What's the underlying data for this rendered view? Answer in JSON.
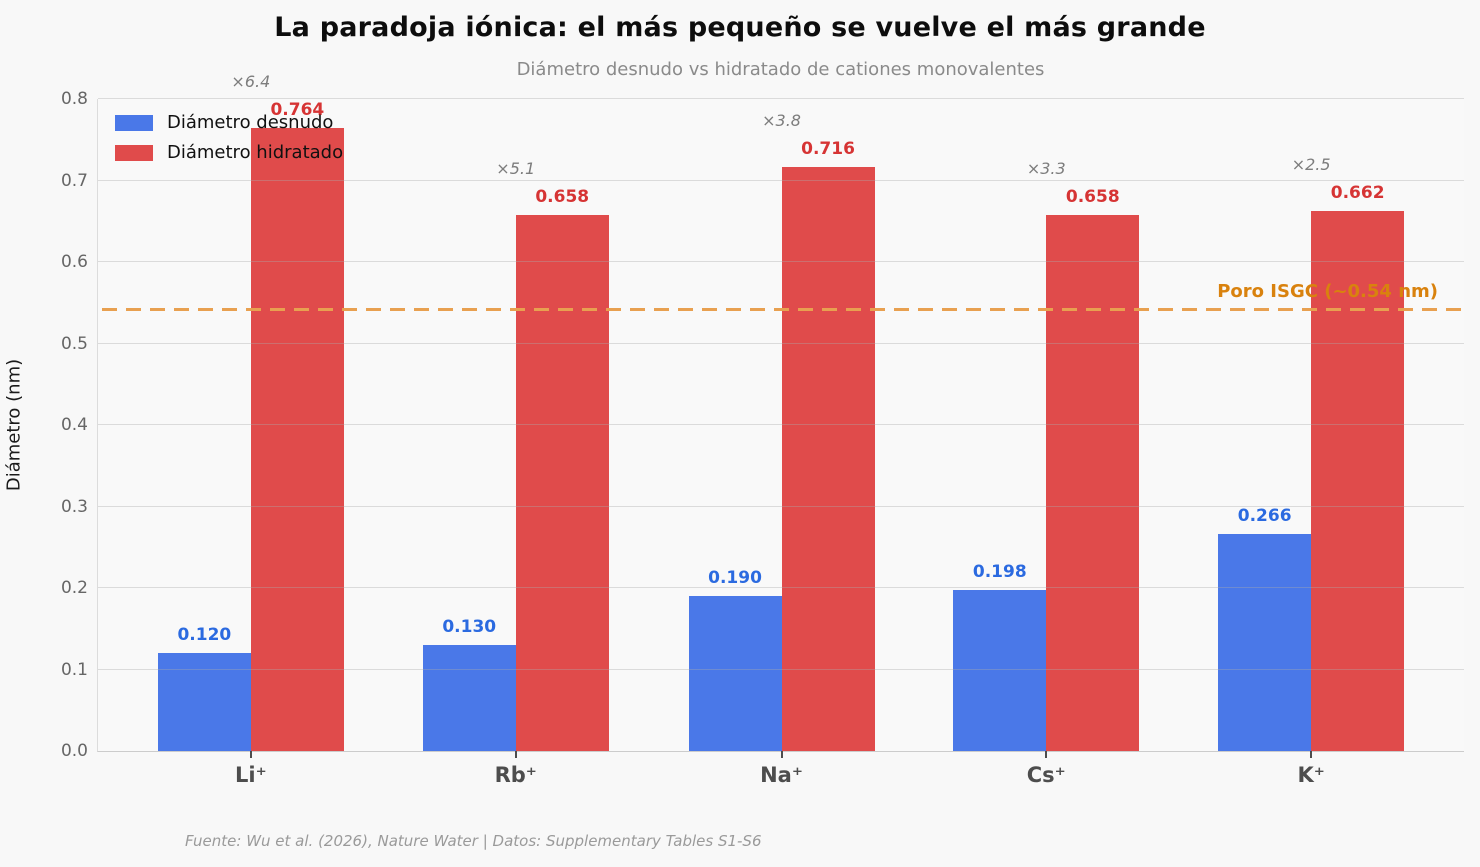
{
  "header": {
    "title": "La paradoja iónica: el más pequeño se vuelve el más grande",
    "subtitle": "Diámetro desnudo vs hidratado de cationes monovalentes"
  },
  "footer": {
    "source_text": "Fuente: Wu et al. (2026), Nature Water | Datos: Supplementary Tables S1-S6"
  },
  "colors": {
    "background": "#f8f8f8",
    "bar_bare": "#4a78e8",
    "bar_hydrated": "#e04b4b",
    "label_bare": "#2b6ae0",
    "label_hydrated": "#d63434",
    "threshold_line": "#e8a050",
    "threshold_text": "#d9820e"
  },
  "chart_data": {
    "type": "bar",
    "title": "La paradoja iónica: el más pequeño se vuelve el más grande",
    "subtitle": "Diámetro desnudo vs hidratado de cationes monovalentes",
    "categories": [
      "Li⁺",
      "Rb⁺",
      "Na⁺",
      "Cs⁺",
      "K⁺"
    ],
    "series": [
      {
        "name": "Diámetro desnudo",
        "color": "#4a78e8",
        "label_color": "#2b6ae0",
        "values": [
          0.12,
          0.13,
          0.19,
          0.198,
          0.266
        ],
        "value_labels": [
          "0.120",
          "0.130",
          "0.190",
          "0.198",
          "0.266"
        ]
      },
      {
        "name": "Diámetro hidratado",
        "color": "#e04b4b",
        "label_color": "#d63434",
        "values": [
          0.764,
          0.658,
          0.716,
          0.658,
          0.662
        ],
        "value_labels": [
          "0.764",
          "0.658",
          "0.716",
          "0.658",
          "0.662"
        ]
      }
    ],
    "multipliers": [
      "×6.4",
      "×5.1",
      "×3.8",
      "×3.3",
      "×2.5"
    ],
    "ylabel": "Diámetro (nm)",
    "xlabel": "",
    "ylim": [
      0,
      0.8
    ],
    "yticks": [
      0.0,
      0.1,
      0.2,
      0.3,
      0.4,
      0.5,
      0.6,
      0.7,
      0.8
    ],
    "ytick_labels": [
      "0.0",
      "0.1",
      "0.2",
      "0.3",
      "0.4",
      "0.5",
      "0.6",
      "0.7",
      "0.8"
    ],
    "threshold": {
      "value": 0.54,
      "label": "Poro ISGC (~0.54 nm)"
    },
    "grid": true,
    "legend_position": "upper-left"
  }
}
